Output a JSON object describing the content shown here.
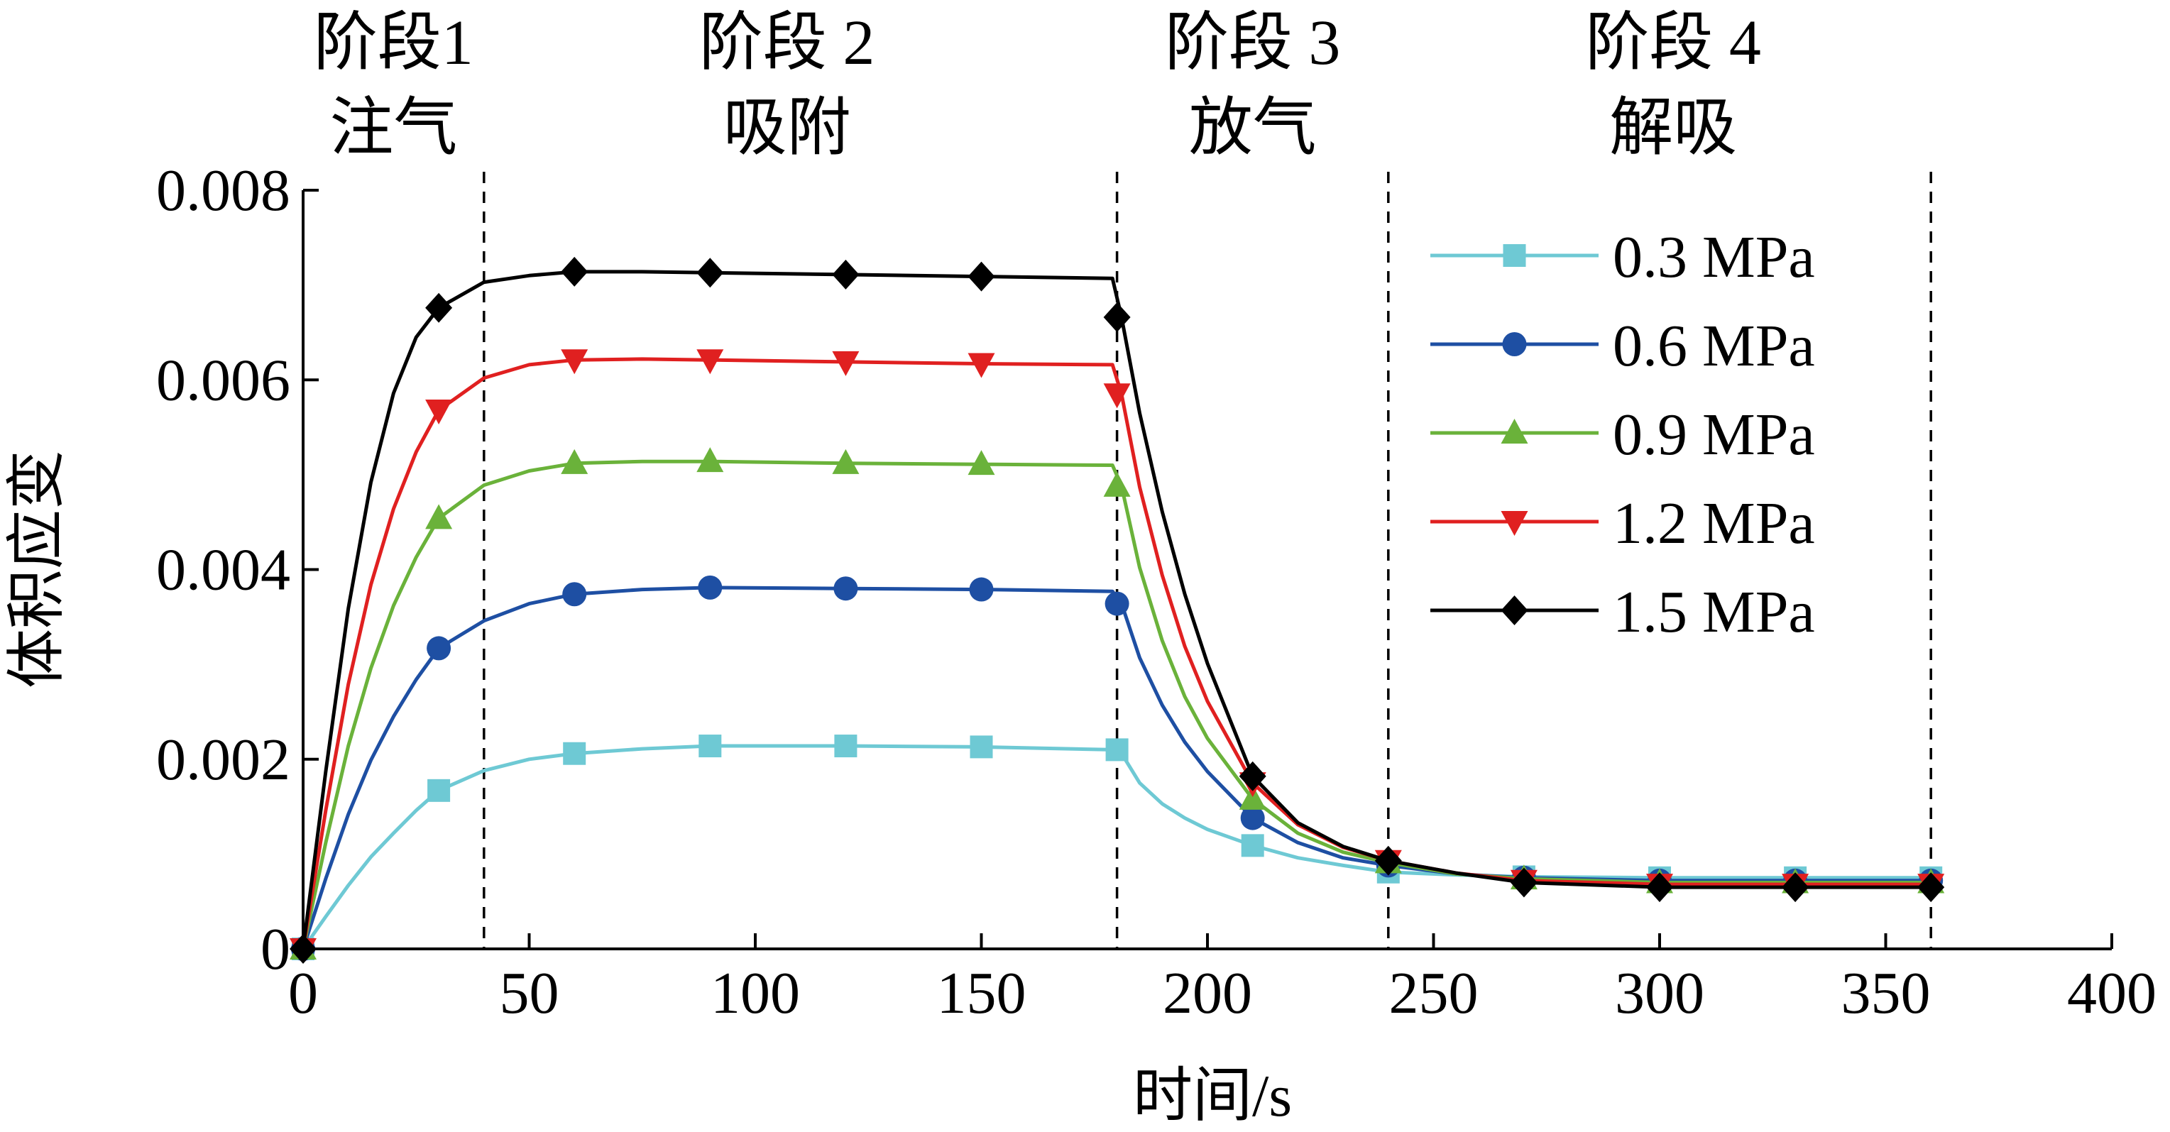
{
  "chart_data": {
    "type": "line",
    "xlabel": "时间/s",
    "ylabel": "体积应变",
    "xlim": [
      0,
      400
    ],
    "ylim": [
      0,
      0.008
    ],
    "xticks": [
      0,
      50,
      100,
      150,
      200,
      250,
      300,
      350,
      400
    ],
    "xtick_labels": [
      "0",
      "50",
      "100",
      "150",
      "200",
      "250",
      "300",
      "350",
      "400"
    ],
    "yticks": [
      0,
      0.002,
      0.004,
      0.006,
      0.008
    ],
    "ytick_labels": [
      "0",
      "0.002",
      "0.004",
      "0.006",
      "0.008"
    ],
    "grid": false,
    "legend_position": "top-right",
    "phase_boundaries": [
      40,
      180,
      240,
      360
    ],
    "phases": [
      {
        "name": "阶段1",
        "label": "注气",
        "center": 20
      },
      {
        "name": "阶段 2",
        "label": "吸附",
        "center": 107
      },
      {
        "name": "阶段 3",
        "label": "放气",
        "center": 210
      },
      {
        "name": "阶段 4",
        "label": "解吸",
        "center": 303
      }
    ],
    "series": [
      {
        "name": "0.3 MPa",
        "color": "#6EC9D4",
        "marker": "square",
        "x": [
          0,
          30,
          60,
          90,
          120,
          150,
          180,
          210,
          240,
          270,
          300,
          330,
          360
        ],
        "y": [
          0,
          0.00167,
          0.00206,
          0.00214,
          0.00214,
          0.00213,
          0.0021,
          0.00109,
          0.00081,
          0.00076,
          0.00075,
          0.00075,
          0.00075
        ],
        "curve": [
          [
            0,
            0
          ],
          [
            5,
            0.00034
          ],
          [
            10,
            0.00067
          ],
          [
            15,
            0.00097
          ],
          [
            20,
            0.00122
          ],
          [
            25,
            0.00146
          ],
          [
            30,
            0.00167
          ],
          [
            40,
            0.00188
          ],
          [
            50,
            0.002
          ],
          [
            60,
            0.00206
          ],
          [
            75,
            0.00211
          ],
          [
            90,
            0.00214
          ],
          [
            120,
            0.00214
          ],
          [
            150,
            0.00213
          ],
          [
            179,
            0.0021
          ],
          [
            181,
            0.00206
          ],
          [
            185,
            0.00175
          ],
          [
            190,
            0.00153
          ],
          [
            195,
            0.00138
          ],
          [
            200,
            0.00126
          ],
          [
            210,
            0.00109
          ],
          [
            220,
            0.00096
          ],
          [
            230,
            0.00088
          ],
          [
            240,
            0.00081
          ],
          [
            255,
            0.00078
          ],
          [
            270,
            0.00076
          ],
          [
            300,
            0.00075
          ],
          [
            360,
            0.00075
          ]
        ]
      },
      {
        "name": "0.6 MPa",
        "color": "#1E4FA3",
        "marker": "circle",
        "x": [
          0,
          30,
          60,
          90,
          120,
          150,
          180,
          210,
          240,
          270,
          300,
          330,
          360
        ],
        "y": [
          0,
          0.00317,
          0.00374,
          0.00381,
          0.0038,
          0.00379,
          0.00364,
          0.00138,
          0.00088,
          0.00075,
          0.00072,
          0.00072,
          0.00072
        ],
        "curve": [
          [
            0,
            0
          ],
          [
            5,
            0.00074
          ],
          [
            10,
            0.00142
          ],
          [
            15,
            0.00199
          ],
          [
            20,
            0.00245
          ],
          [
            25,
            0.00284
          ],
          [
            30,
            0.00317
          ],
          [
            40,
            0.00346
          ],
          [
            50,
            0.00364
          ],
          [
            60,
            0.00374
          ],
          [
            75,
            0.00379
          ],
          [
            90,
            0.00381
          ],
          [
            120,
            0.0038
          ],
          [
            150,
            0.00379
          ],
          [
            179,
            0.00377
          ],
          [
            181,
            0.00364
          ],
          [
            185,
            0.00307
          ],
          [
            190,
            0.00257
          ],
          [
            195,
            0.00218
          ],
          [
            200,
            0.00187
          ],
          [
            210,
            0.00138
          ],
          [
            220,
            0.00112
          ],
          [
            230,
            0.00096
          ],
          [
            240,
            0.00088
          ],
          [
            255,
            0.00079
          ],
          [
            270,
            0.00075
          ],
          [
            300,
            0.00072
          ],
          [
            360,
            0.00072
          ]
        ]
      },
      {
        "name": "0.9 MPa",
        "color": "#6AB23A",
        "marker": "triangle-up",
        "x": [
          0,
          30,
          60,
          90,
          120,
          150,
          180,
          210,
          240,
          270,
          300,
          330,
          360
        ],
        "y": [
          0,
          0.00454,
          0.00512,
          0.00514,
          0.00512,
          0.00511,
          0.00488,
          0.00158,
          0.00091,
          0.00074,
          0.0007,
          0.0007,
          0.0007
        ],
        "curve": [
          [
            0,
            0
          ],
          [
            5,
            0.00112
          ],
          [
            10,
            0.00214
          ],
          [
            15,
            0.00296
          ],
          [
            20,
            0.00362
          ],
          [
            25,
            0.00413
          ],
          [
            30,
            0.00454
          ],
          [
            40,
            0.00489
          ],
          [
            50,
            0.00504
          ],
          [
            60,
            0.00512
          ],
          [
            75,
            0.00514
          ],
          [
            90,
            0.00514
          ],
          [
            120,
            0.00512
          ],
          [
            150,
            0.00511
          ],
          [
            179,
            0.0051
          ],
          [
            181,
            0.00488
          ],
          [
            185,
            0.00402
          ],
          [
            190,
            0.00325
          ],
          [
            195,
            0.00266
          ],
          [
            200,
            0.00222
          ],
          [
            210,
            0.00158
          ],
          [
            220,
            0.00122
          ],
          [
            230,
            0.00102
          ],
          [
            240,
            0.00091
          ],
          [
            255,
            0.00079
          ],
          [
            270,
            0.00074
          ],
          [
            300,
            0.0007
          ],
          [
            360,
            0.0007
          ]
        ]
      },
      {
        "name": "1.2 MPa",
        "color": "#E02020",
        "marker": "triangle-down",
        "x": [
          0,
          30,
          60,
          90,
          120,
          150,
          180,
          210,
          240,
          270,
          300,
          330,
          360
        ],
        "y": [
          0,
          0.00568,
          0.00621,
          0.00621,
          0.00619,
          0.00617,
          0.00585,
          0.00175,
          0.00093,
          0.00072,
          0.00068,
          0.00068,
          0.00068
        ],
        "curve": [
          [
            0,
            0
          ],
          [
            5,
            0.00146
          ],
          [
            10,
            0.00279
          ],
          [
            15,
            0.00384
          ],
          [
            20,
            0.00464
          ],
          [
            25,
            0.00524
          ],
          [
            30,
            0.00568
          ],
          [
            40,
            0.00602
          ],
          [
            50,
            0.00616
          ],
          [
            60,
            0.00621
          ],
          [
            75,
            0.00622
          ],
          [
            90,
            0.00621
          ],
          [
            120,
            0.00619
          ],
          [
            150,
            0.00617
          ],
          [
            179,
            0.00616
          ],
          [
            181,
            0.00585
          ],
          [
            185,
            0.00487
          ],
          [
            190,
            0.00394
          ],
          [
            195,
            0.00319
          ],
          [
            200,
            0.00261
          ],
          [
            210,
            0.00175
          ],
          [
            220,
            0.00131
          ],
          [
            230,
            0.00107
          ],
          [
            240,
            0.00093
          ],
          [
            255,
            0.0008
          ],
          [
            270,
            0.00072
          ],
          [
            300,
            0.00068
          ],
          [
            360,
            0.00068
          ]
        ]
      },
      {
        "name": "1.5 MPa",
        "color": "#000000",
        "marker": "diamond",
        "x": [
          0,
          30,
          60,
          90,
          120,
          150,
          180,
          210,
          240,
          270,
          300,
          330,
          360
        ],
        "y": [
          0,
          0.00676,
          0.00714,
          0.00713,
          0.00711,
          0.00709,
          0.00666,
          0.00182,
          0.00093,
          0.0007,
          0.00065,
          0.00065,
          0.00065
        ],
        "curve": [
          [
            0,
            0
          ],
          [
            5,
            0.00187
          ],
          [
            10,
            0.00359
          ],
          [
            15,
            0.00492
          ],
          [
            20,
            0.00586
          ],
          [
            25,
            0.00645
          ],
          [
            30,
            0.00676
          ],
          [
            40,
            0.00703
          ],
          [
            50,
            0.0071
          ],
          [
            60,
            0.00714
          ],
          [
            75,
            0.00714
          ],
          [
            90,
            0.00713
          ],
          [
            120,
            0.00711
          ],
          [
            150,
            0.00709
          ],
          [
            179,
            0.00707
          ],
          [
            181,
            0.00666
          ],
          [
            185,
            0.00565
          ],
          [
            190,
            0.00461
          ],
          [
            195,
            0.00374
          ],
          [
            200,
            0.00301
          ],
          [
            210,
            0.00182
          ],
          [
            220,
            0.00133
          ],
          [
            230,
            0.00108
          ],
          [
            240,
            0.00093
          ],
          [
            255,
            0.0008
          ],
          [
            270,
            0.0007
          ],
          [
            300,
            0.00065
          ],
          [
            360,
            0.00065
          ]
        ]
      }
    ]
  }
}
